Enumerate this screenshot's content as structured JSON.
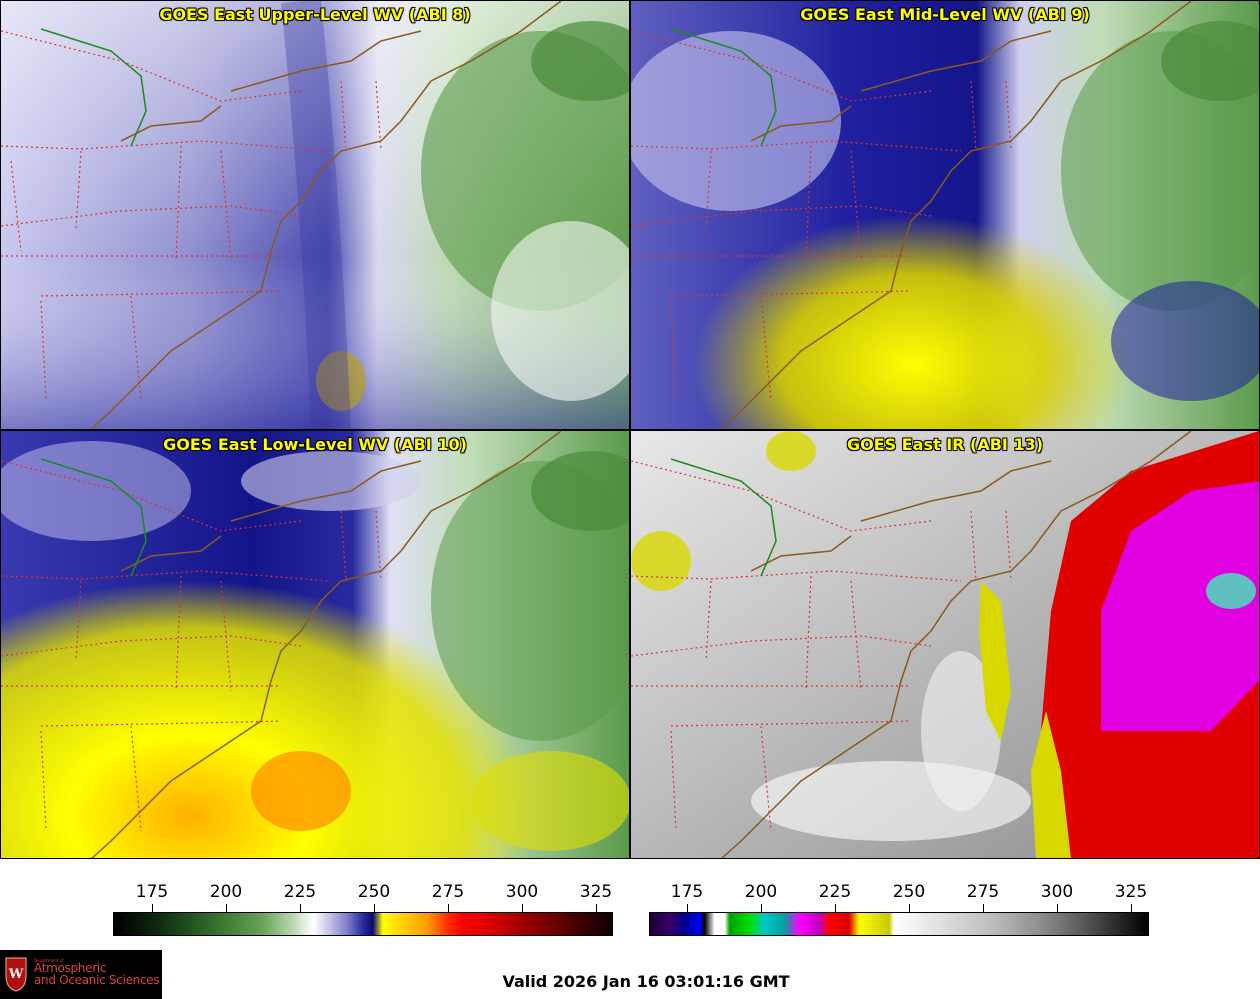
{
  "panels": [
    {
      "title": "GOES East Upper-Level WV (ABI 8)",
      "product": "water-vapor-upper"
    },
    {
      "title": "GOES East Mid-Level WV (ABI 9)",
      "product": "water-vapor-mid"
    },
    {
      "title": "GOES East Low-Level WV (ABI 10)",
      "product": "water-vapor-low"
    },
    {
      "title": "GOES East IR (ABI 13)",
      "product": "infrared"
    }
  ],
  "colorbars": [
    {
      "name": "water-vapor-colorbar",
      "ticks": [
        "175",
        "200",
        "225",
        "250",
        "275",
        "300",
        "325"
      ]
    },
    {
      "name": "infrared-colorbar",
      "ticks": [
        "175",
        "200",
        "225",
        "250",
        "275",
        "300",
        "325"
      ]
    }
  ],
  "valid_time": "Valid 2026 Jan 16 03:01:16 GMT",
  "logo": {
    "small": "Department of",
    "line1": "Atmospheric",
    "line2": "and Oceanic Sciences"
  },
  "colors": {
    "title": "#ffff00",
    "state_borders": "#e03030",
    "coastline": "#8a5a1e",
    "international_border": "#1e8a1e"
  }
}
